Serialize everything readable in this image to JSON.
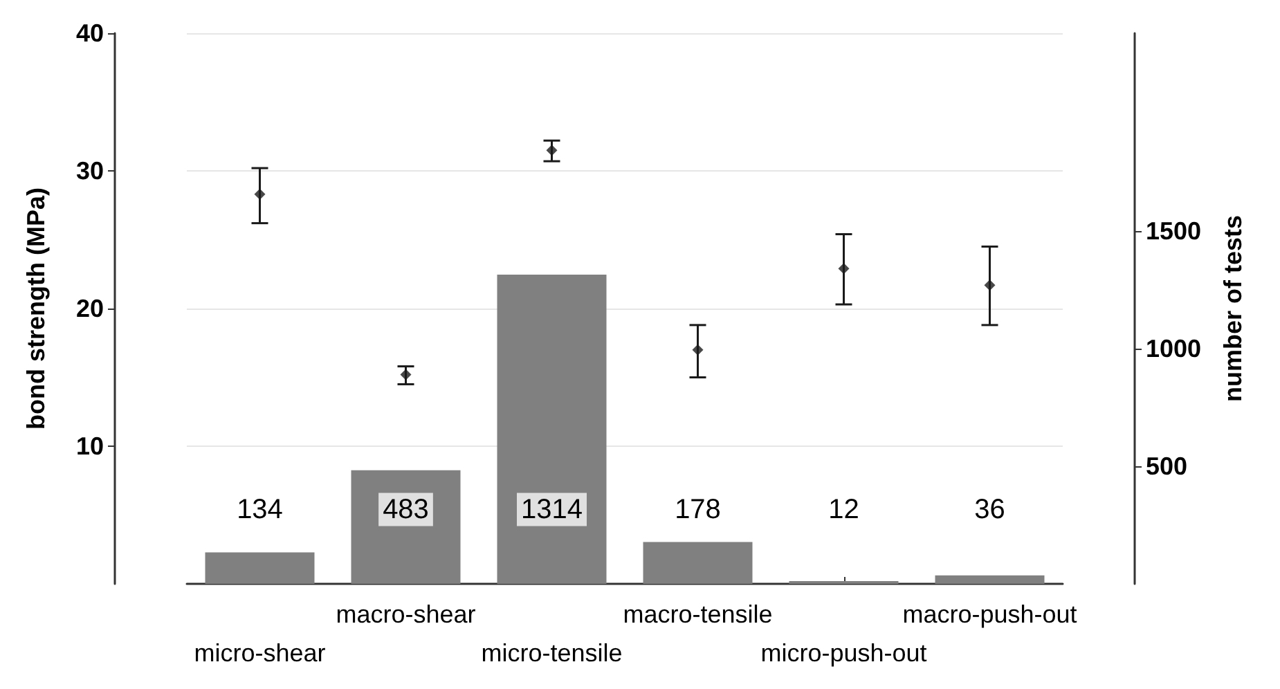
{
  "chart_data": {
    "type": "bar",
    "categories": [
      "micro-shear",
      "macro-shear",
      "micro-tensile",
      "macro-tensile",
      "micro-push-out",
      "macro-push-out"
    ],
    "series": [
      {
        "type": "bar",
        "axis": "y2",
        "color": "#808080",
        "values": [
          134,
          483,
          1314,
          178,
          12,
          36
        ],
        "value_labels": [
          "134",
          "483",
          "1314",
          "178",
          "12",
          "36"
        ]
      },
      {
        "type": "scatter",
        "color": "#1a1a1a",
        "marker": "diamond",
        "values": [
          28.3,
          15.2,
          31.5,
          17.0,
          22.9,
          21.7
        ],
        "errors": [
          [
            26.2,
            30.2
          ],
          [
            14.5,
            15.8
          ],
          [
            30.7,
            32.2
          ],
          [
            15.0,
            18.8
          ],
          [
            20.3,
            25.4
          ],
          [
            18.8,
            24.5
          ]
        ]
      }
    ],
    "ylabel": "bond strength (MPa)",
    "y2label": "number of tests",
    "ylim": [
      0,
      40
    ],
    "yticks": [
      10,
      20,
      30,
      40
    ],
    "y2lim": [
      0,
      2340
    ],
    "y2ticks": [
      500,
      1000,
      1500
    ],
    "grid": "y"
  }
}
